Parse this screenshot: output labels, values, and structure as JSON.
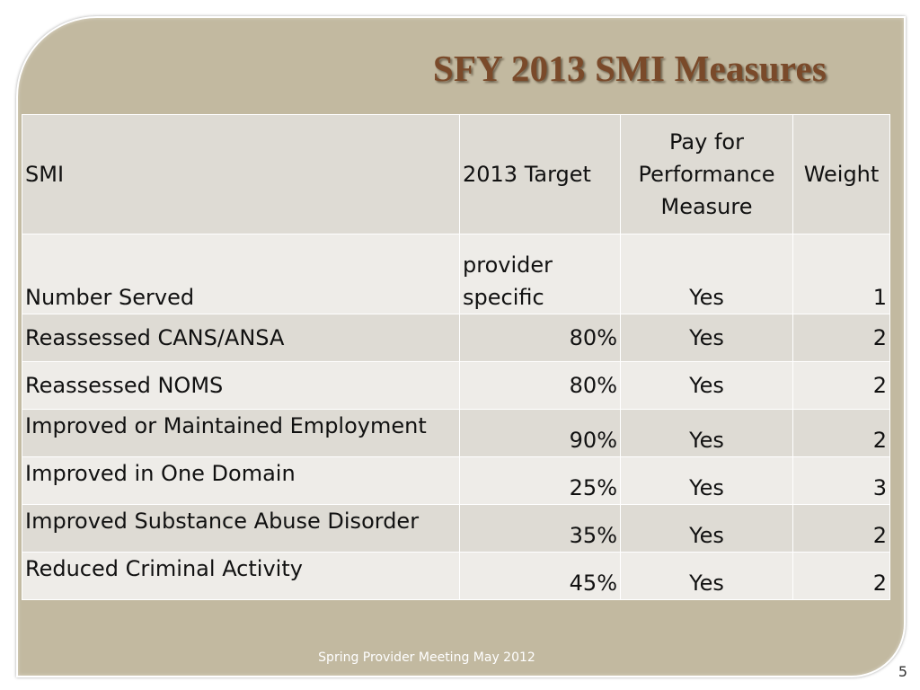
{
  "slide": {
    "title": "SFY 2013 SMI Measures",
    "footer": "Spring Provider Meeting May 2012",
    "page_number": "5"
  },
  "table": {
    "headers": {
      "smi": "SMI",
      "target": "2013 Target",
      "pay": "Pay for Performance Measure",
      "weight": "Weight"
    },
    "rows": [
      {
        "name": "Number Served",
        "target": "provider specific",
        "pay": "Yes",
        "weight": "1"
      },
      {
        "name": "Reassessed CANS/ANSA",
        "target": "80%",
        "pay": "Yes",
        "weight": "2"
      },
      {
        "name": "Reassessed NOMS",
        "target": "80%",
        "pay": "Yes",
        "weight": "2"
      },
      {
        "name": "Improved or Maintained Employment",
        "target": "90%",
        "pay": "Yes",
        "weight": "2"
      },
      {
        "name": "Improved in One Domain",
        "target": "25%",
        "pay": "Yes",
        "weight": "3"
      },
      {
        "name": "Improved Substance Abuse Disorder",
        "target": "35%",
        "pay": "Yes",
        "weight": "2"
      },
      {
        "name": "Reduced Criminal Activity",
        "target": "45%",
        "pay": "Yes",
        "weight": "2"
      }
    ]
  },
  "colors": {
    "frame": "#c2b9a0",
    "title": "#7a4a2a",
    "row_dark": "#dedbd4",
    "row_light": "#eeece8"
  }
}
